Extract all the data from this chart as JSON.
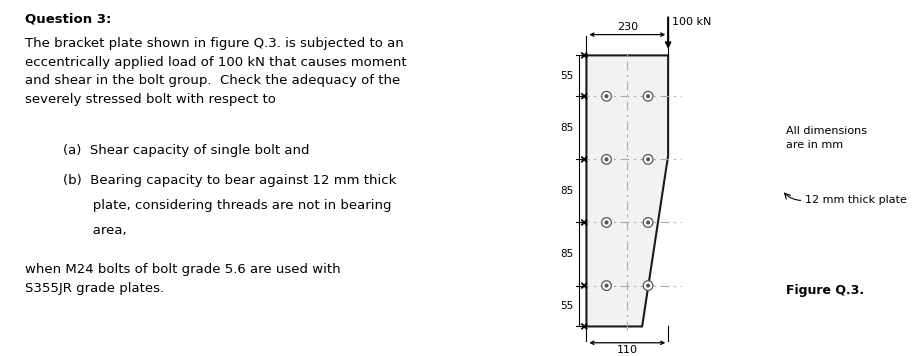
{
  "title": "Question 3:",
  "body_text": "The bracket plate shown in figure Q.3. is subjected to an\neccentrically applied load of 100 kN that causes moment\nand shear in the bolt group.  Check the adequacy of the\nseverely stressed bolt with respect to",
  "item_a": "(a)  Shear capacity of single bolt and",
  "item_b_line1": "(b)  Bearing capacity to bear against 12 mm thick",
  "item_b_line2": "       plate, considering threads are not in bearing",
  "item_b_line3": "       area,",
  "footer_text": "when M24 bolts of bolt grade 5.6 are used with\nS355JR grade plates.",
  "dim_230": "230",
  "dim_100kN": "100 kN",
  "dim_55": "55",
  "dim_85": "85",
  "dim_110": "110",
  "label_all_dim": "All dimensions\nare in mm",
  "label_thick_plate": "12 mm thick plate",
  "label_figure": "Figure Q.3.",
  "bg_color": "#ffffff",
  "text_color": "#000000",
  "plate_fill": "#f2f2f2",
  "plate_edge": "#1a1a1a",
  "bolt_edge": "#555555",
  "dash_color": "#aaaaaa"
}
